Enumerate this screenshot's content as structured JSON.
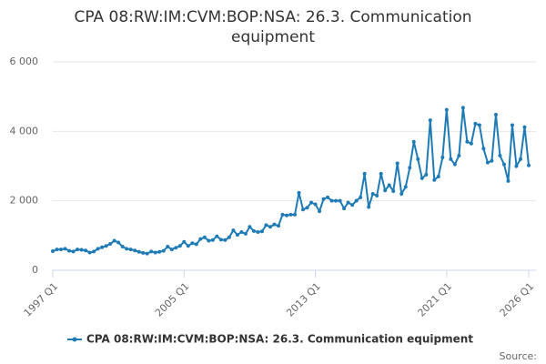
{
  "chart_data": {
    "type": "line",
    "title": "CPA 08:RW:IM:CVM:BOP:NSA: 26.3. Communication equipment",
    "source": "Source:",
    "categories": [
      "1997 Q1",
      null,
      null,
      null,
      null,
      null,
      null,
      null,
      null,
      null,
      null,
      null,
      null,
      null,
      null,
      null,
      null,
      null,
      null,
      null,
      null,
      null,
      null,
      null,
      null,
      null,
      null,
      null,
      null,
      null,
      null,
      null,
      "2005 Q1",
      null,
      null,
      null,
      null,
      null,
      null,
      null,
      null,
      null,
      null,
      null,
      null,
      null,
      null,
      null,
      null,
      null,
      null,
      null,
      null,
      null,
      null,
      null,
      null,
      null,
      null,
      null,
      null,
      null,
      null,
      null,
      "2013 Q1",
      null,
      null,
      null,
      null,
      null,
      null,
      null,
      null,
      null,
      null,
      null,
      null,
      null,
      null,
      null,
      null,
      null,
      null,
      null,
      null,
      null,
      null,
      null,
      null,
      null,
      null,
      null,
      null,
      null,
      null,
      null,
      "2021 Q1",
      null,
      null,
      null,
      null,
      null,
      null,
      null,
      null,
      null,
      null,
      null,
      null,
      null,
      null,
      null,
      null,
      null,
      null,
      null,
      "2026 Q1"
    ],
    "series": [
      {
        "name": "CPA 08:RW:IM:CVM:BOP:NSA: 26.3. Communication equipment",
        "color": "#1f7bb6",
        "values": [
          550,
          600,
          600,
          620,
          560,
          540,
          600,
          590,
          570,
          510,
          540,
          620,
          660,
          700,
          760,
          850,
          800,
          680,
          620,
          600,
          570,
          530,
          500,
          480,
          540,
          510,
          530,
          560,
          680,
          600,
          650,
          700,
          820,
          700,
          780,
          750,
          900,
          950,
          850,
          870,
          980,
          880,
          870,
          950,
          1150,
          1020,
          1100,
          1050,
          1250,
          1130,
          1100,
          1120,
          1300,
          1250,
          1320,
          1280,
          1600,
          1580,
          1600,
          1600,
          2230,
          1750,
          1800,
          1950,
          1900,
          1700,
          2050,
          2100,
          2000,
          2000,
          2000,
          1780,
          1950,
          1880,
          2000,
          2100,
          2780,
          1820,
          2200,
          2150,
          2780,
          2300,
          2450,
          2280,
          3080,
          2200,
          2400,
          2950,
          3700,
          3200,
          2650,
          2750,
          4320,
          2600,
          2700,
          3250,
          4620,
          3200,
          3050,
          3300,
          4680,
          3700,
          3650,
          4220,
          4180,
          3500,
          3100,
          3150,
          4480,
          3300,
          3050,
          2570,
          4180,
          3000,
          3200,
          4120,
          3020
        ]
      }
    ],
    "ylim": [
      0,
      6000
    ],
    "yticks": [
      0,
      {
        "value": 2000,
        "label": "2 000"
      },
      {
        "value": 4000,
        "label": "4 000"
      },
      {
        "value": 6000,
        "label": "6 000"
      }
    ],
    "grid": true
  }
}
